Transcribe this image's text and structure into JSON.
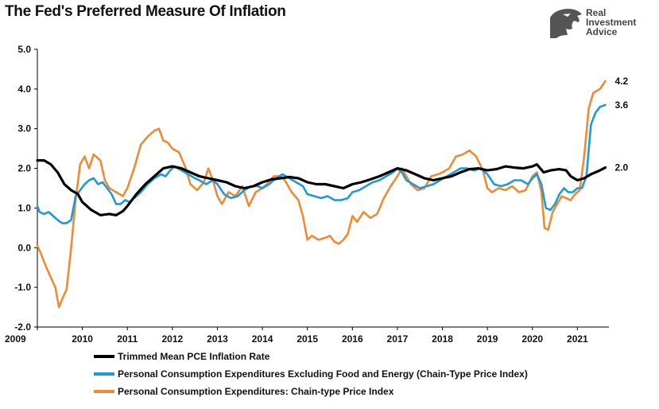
{
  "title": "The Fed's Preferred Measure Of Inflation",
  "logo": {
    "line1": "Real",
    "line2": "Investment",
    "line3": "Advice",
    "icon": "eagle-head-icon"
  },
  "chart_data": {
    "type": "line",
    "title": "The Fed's Preferred Measure Of Inflation",
    "xlabel": "",
    "ylabel": "",
    "xlim": [
      2009.0,
      2021.7
    ],
    "ylim": [
      -2.0,
      5.0
    ],
    "y_ticks": [
      "5.0",
      "4.0",
      "3.0",
      "2.0",
      "1.0",
      "0.0",
      "-1.0",
      "-2.0"
    ],
    "y_tick_values": [
      5,
      4,
      3,
      2,
      1,
      0,
      -1,
      -2
    ],
    "x_ticks": [
      "2009",
      "2010",
      "2011",
      "2012",
      "2013",
      "2014",
      "2015",
      "2016",
      "2017",
      "2018",
      "2019",
      "2020",
      "2021"
    ],
    "x_tick_values": [
      2009,
      2010,
      2011,
      2012,
      2013,
      2014,
      2015,
      2016,
      2017,
      2018,
      2019,
      2020,
      2021
    ],
    "grid": false,
    "legend_position": "bottom",
    "series": [
      {
        "name": "Trimmed Mean PCE Inflation Rate",
        "color": "#000000",
        "end_label": "2.0",
        "points": [
          [
            2009.0,
            2.2
          ],
          [
            2009.15,
            2.2
          ],
          [
            2009.3,
            2.1
          ],
          [
            2009.45,
            1.9
          ],
          [
            2009.6,
            1.6
          ],
          [
            2009.75,
            1.45
          ],
          [
            2009.9,
            1.35
          ],
          [
            2010.0,
            1.15
          ],
          [
            2010.2,
            0.95
          ],
          [
            2010.4,
            0.82
          ],
          [
            2010.6,
            0.85
          ],
          [
            2010.75,
            0.82
          ],
          [
            2010.9,
            0.92
          ],
          [
            2011.0,
            1.05
          ],
          [
            2011.2,
            1.35
          ],
          [
            2011.4,
            1.6
          ],
          [
            2011.6,
            1.8
          ],
          [
            2011.8,
            2.0
          ],
          [
            2012.0,
            2.05
          ],
          [
            2012.2,
            2.0
          ],
          [
            2012.4,
            1.9
          ],
          [
            2012.6,
            1.8
          ],
          [
            2012.8,
            1.75
          ],
          [
            2013.0,
            1.7
          ],
          [
            2013.2,
            1.65
          ],
          [
            2013.4,
            1.55
          ],
          [
            2013.6,
            1.5
          ],
          [
            2013.8,
            1.55
          ],
          [
            2014.0,
            1.65
          ],
          [
            2014.2,
            1.72
          ],
          [
            2014.4,
            1.75
          ],
          [
            2014.6,
            1.78
          ],
          [
            2014.8,
            1.75
          ],
          [
            2015.0,
            1.65
          ],
          [
            2015.2,
            1.6
          ],
          [
            2015.4,
            1.6
          ],
          [
            2015.6,
            1.55
          ],
          [
            2015.8,
            1.5
          ],
          [
            2016.0,
            1.6
          ],
          [
            2016.2,
            1.65
          ],
          [
            2016.4,
            1.72
          ],
          [
            2016.6,
            1.8
          ],
          [
            2016.8,
            1.9
          ],
          [
            2017.0,
            2.0
          ],
          [
            2017.2,
            1.95
          ],
          [
            2017.4,
            1.85
          ],
          [
            2017.6,
            1.75
          ],
          [
            2017.8,
            1.7
          ],
          [
            2018.0,
            1.75
          ],
          [
            2018.2,
            1.8
          ],
          [
            2018.4,
            1.9
          ],
          [
            2018.6,
            1.98
          ],
          [
            2018.8,
            2.0
          ],
          [
            2019.0,
            1.95
          ],
          [
            2019.2,
            1.98
          ],
          [
            2019.4,
            2.05
          ],
          [
            2019.6,
            2.02
          ],
          [
            2019.8,
            2.0
          ],
          [
            2020.0,
            2.05
          ],
          [
            2020.1,
            2.1
          ],
          [
            2020.25,
            1.9
          ],
          [
            2020.4,
            1.95
          ],
          [
            2020.6,
            1.98
          ],
          [
            2020.75,
            1.95
          ],
          [
            2020.85,
            1.8
          ],
          [
            2021.0,
            1.7
          ],
          [
            2021.15,
            1.75
          ],
          [
            2021.3,
            1.85
          ],
          [
            2021.5,
            1.95
          ],
          [
            2021.62,
            2.02
          ]
        ]
      },
      {
        "name": "Personal Consumption Expenditures Excluding Food and Energy (Chain-Type Price Index)",
        "color": "#1f9ad6",
        "end_label": "3.6",
        "points": [
          [
            2009.0,
            1.05
          ],
          [
            2009.05,
            0.9
          ],
          [
            2009.15,
            0.85
          ],
          [
            2009.25,
            0.9
          ],
          [
            2009.35,
            0.8
          ],
          [
            2009.45,
            0.7
          ],
          [
            2009.55,
            0.62
          ],
          [
            2009.65,
            0.62
          ],
          [
            2009.75,
            0.7
          ],
          [
            2009.85,
            1.3
          ],
          [
            2009.95,
            1.45
          ],
          [
            2010.05,
            1.6
          ],
          [
            2010.15,
            1.7
          ],
          [
            2010.25,
            1.75
          ],
          [
            2010.35,
            1.6
          ],
          [
            2010.45,
            1.65
          ],
          [
            2010.55,
            1.5
          ],
          [
            2010.65,
            1.35
          ],
          [
            2010.75,
            1.1
          ],
          [
            2010.85,
            1.1
          ],
          [
            2010.95,
            1.2
          ],
          [
            2011.05,
            1.15
          ],
          [
            2011.15,
            1.25
          ],
          [
            2011.3,
            1.4
          ],
          [
            2011.45,
            1.6
          ],
          [
            2011.6,
            1.75
          ],
          [
            2011.75,
            1.85
          ],
          [
            2011.85,
            1.8
          ],
          [
            2011.95,
            1.95
          ],
          [
            2012.05,
            2.05
          ],
          [
            2012.2,
            1.95
          ],
          [
            2012.35,
            1.85
          ],
          [
            2012.5,
            1.75
          ],
          [
            2012.6,
            1.7
          ],
          [
            2012.75,
            1.6
          ],
          [
            2012.9,
            1.7
          ],
          [
            2013.0,
            1.6
          ],
          [
            2013.15,
            1.35
          ],
          [
            2013.3,
            1.25
          ],
          [
            2013.45,
            1.3
          ],
          [
            2013.6,
            1.45
          ],
          [
            2013.75,
            1.55
          ],
          [
            2013.9,
            1.55
          ],
          [
            2014.0,
            1.5
          ],
          [
            2014.15,
            1.6
          ],
          [
            2014.3,
            1.75
          ],
          [
            2014.45,
            1.85
          ],
          [
            2014.6,
            1.75
          ],
          [
            2014.75,
            1.65
          ],
          [
            2014.9,
            1.55
          ],
          [
            2015.0,
            1.35
          ],
          [
            2015.15,
            1.3
          ],
          [
            2015.3,
            1.25
          ],
          [
            2015.45,
            1.3
          ],
          [
            2015.6,
            1.2
          ],
          [
            2015.75,
            1.2
          ],
          [
            2015.9,
            1.25
          ],
          [
            2016.0,
            1.4
          ],
          [
            2016.15,
            1.45
          ],
          [
            2016.3,
            1.55
          ],
          [
            2016.45,
            1.65
          ],
          [
            2016.6,
            1.7
          ],
          [
            2016.75,
            1.8
          ],
          [
            2016.9,
            1.9
          ],
          [
            2017.0,
            2.0
          ],
          [
            2017.1,
            1.9
          ],
          [
            2017.2,
            1.7
          ],
          [
            2017.35,
            1.6
          ],
          [
            2017.5,
            1.5
          ],
          [
            2017.65,
            1.55
          ],
          [
            2017.8,
            1.6
          ],
          [
            2017.95,
            1.7
          ],
          [
            2018.1,
            1.8
          ],
          [
            2018.25,
            1.9
          ],
          [
            2018.4,
            2.0
          ],
          [
            2018.55,
            2.0
          ],
          [
            2018.7,
            1.95
          ],
          [
            2018.85,
            2.0
          ],
          [
            2019.0,
            1.85
          ],
          [
            2019.15,
            1.6
          ],
          [
            2019.3,
            1.55
          ],
          [
            2019.45,
            1.6
          ],
          [
            2019.6,
            1.7
          ],
          [
            2019.75,
            1.7
          ],
          [
            2019.9,
            1.6
          ],
          [
            2020.0,
            1.75
          ],
          [
            2020.1,
            1.85
          ],
          [
            2020.2,
            1.6
          ],
          [
            2020.3,
            1.0
          ],
          [
            2020.4,
            0.95
          ],
          [
            2020.5,
            1.1
          ],
          [
            2020.6,
            1.35
          ],
          [
            2020.7,
            1.5
          ],
          [
            2020.8,
            1.4
          ],
          [
            2020.9,
            1.4
          ],
          [
            2021.0,
            1.5
          ],
          [
            2021.1,
            1.5
          ],
          [
            2021.2,
            1.8
          ],
          [
            2021.3,
            3.1
          ],
          [
            2021.4,
            3.4
          ],
          [
            2021.5,
            3.55
          ],
          [
            2021.62,
            3.6
          ]
        ]
      },
      {
        "name": "Personal Consumption Expenditures: Chain-type Price Index",
        "color": "#ef8a35",
        "end_label": "4.2",
        "points": [
          [
            2009.0,
            0.05
          ],
          [
            2009.08,
            -0.15
          ],
          [
            2009.2,
            -0.5
          ],
          [
            2009.3,
            -0.75
          ],
          [
            2009.4,
            -1.0
          ],
          [
            2009.48,
            -1.5
          ],
          [
            2009.55,
            -1.3
          ],
          [
            2009.65,
            -1.05
          ],
          [
            2009.75,
            0.0
          ],
          [
            2009.85,
            1.2
          ],
          [
            2009.95,
            2.1
          ],
          [
            2010.05,
            2.3
          ],
          [
            2010.15,
            2.0
          ],
          [
            2010.25,
            2.35
          ],
          [
            2010.4,
            2.2
          ],
          [
            2010.5,
            1.7
          ],
          [
            2010.6,
            1.5
          ],
          [
            2010.75,
            1.4
          ],
          [
            2010.9,
            1.3
          ],
          [
            2011.0,
            1.5
          ],
          [
            2011.15,
            2.0
          ],
          [
            2011.3,
            2.6
          ],
          [
            2011.45,
            2.8
          ],
          [
            2011.6,
            2.95
          ],
          [
            2011.7,
            3.0
          ],
          [
            2011.8,
            2.7
          ],
          [
            2011.9,
            2.65
          ],
          [
            2012.0,
            2.5
          ],
          [
            2012.15,
            2.4
          ],
          [
            2012.3,
            2.0
          ],
          [
            2012.4,
            1.6
          ],
          [
            2012.55,
            1.45
          ],
          [
            2012.7,
            1.65
          ],
          [
            2012.8,
            2.0
          ],
          [
            2012.9,
            1.7
          ],
          [
            2013.0,
            1.3
          ],
          [
            2013.1,
            1.1
          ],
          [
            2013.25,
            1.4
          ],
          [
            2013.4,
            1.3
          ],
          [
            2013.55,
            1.55
          ],
          [
            2013.7,
            1.05
          ],
          [
            2013.85,
            1.4
          ],
          [
            2014.0,
            1.5
          ],
          [
            2014.1,
            1.6
          ],
          [
            2014.25,
            1.8
          ],
          [
            2014.4,
            1.8
          ],
          [
            2014.5,
            1.7
          ],
          [
            2014.65,
            1.4
          ],
          [
            2014.8,
            1.2
          ],
          [
            2014.9,
            0.8
          ],
          [
            2015.0,
            0.2
          ],
          [
            2015.1,
            0.3
          ],
          [
            2015.25,
            0.2
          ],
          [
            2015.4,
            0.25
          ],
          [
            2015.5,
            0.3
          ],
          [
            2015.6,
            0.15
          ],
          [
            2015.7,
            0.1
          ],
          [
            2015.8,
            0.2
          ],
          [
            2015.9,
            0.35
          ],
          [
            2016.0,
            0.8
          ],
          [
            2016.1,
            0.65
          ],
          [
            2016.25,
            0.9
          ],
          [
            2016.4,
            0.75
          ],
          [
            2016.55,
            0.85
          ],
          [
            2016.7,
            1.25
          ],
          [
            2016.85,
            1.55
          ],
          [
            2017.0,
            1.8
          ],
          [
            2017.1,
            2.0
          ],
          [
            2017.2,
            1.8
          ],
          [
            2017.3,
            1.6
          ],
          [
            2017.45,
            1.45
          ],
          [
            2017.6,
            1.5
          ],
          [
            2017.75,
            1.8
          ],
          [
            2017.9,
            1.85
          ],
          [
            2018.0,
            1.9
          ],
          [
            2018.15,
            2.0
          ],
          [
            2018.3,
            2.3
          ],
          [
            2018.45,
            2.35
          ],
          [
            2018.6,
            2.45
          ],
          [
            2018.75,
            2.3
          ],
          [
            2018.9,
            1.95
          ],
          [
            2019.0,
            1.5
          ],
          [
            2019.1,
            1.4
          ],
          [
            2019.25,
            1.5
          ],
          [
            2019.4,
            1.45
          ],
          [
            2019.55,
            1.55
          ],
          [
            2019.7,
            1.4
          ],
          [
            2019.85,
            1.45
          ],
          [
            2020.0,
            1.8
          ],
          [
            2020.1,
            1.9
          ],
          [
            2020.2,
            1.4
          ],
          [
            2020.27,
            0.5
          ],
          [
            2020.35,
            0.45
          ],
          [
            2020.45,
            0.9
          ],
          [
            2020.55,
            1.1
          ],
          [
            2020.65,
            1.3
          ],
          [
            2020.75,
            1.25
          ],
          [
            2020.85,
            1.2
          ],
          [
            2020.95,
            1.35
          ],
          [
            2021.05,
            1.45
          ],
          [
            2021.15,
            2.3
          ],
          [
            2021.25,
            3.5
          ],
          [
            2021.35,
            3.9
          ],
          [
            2021.5,
            4.0
          ],
          [
            2021.62,
            4.2
          ]
        ]
      }
    ]
  }
}
